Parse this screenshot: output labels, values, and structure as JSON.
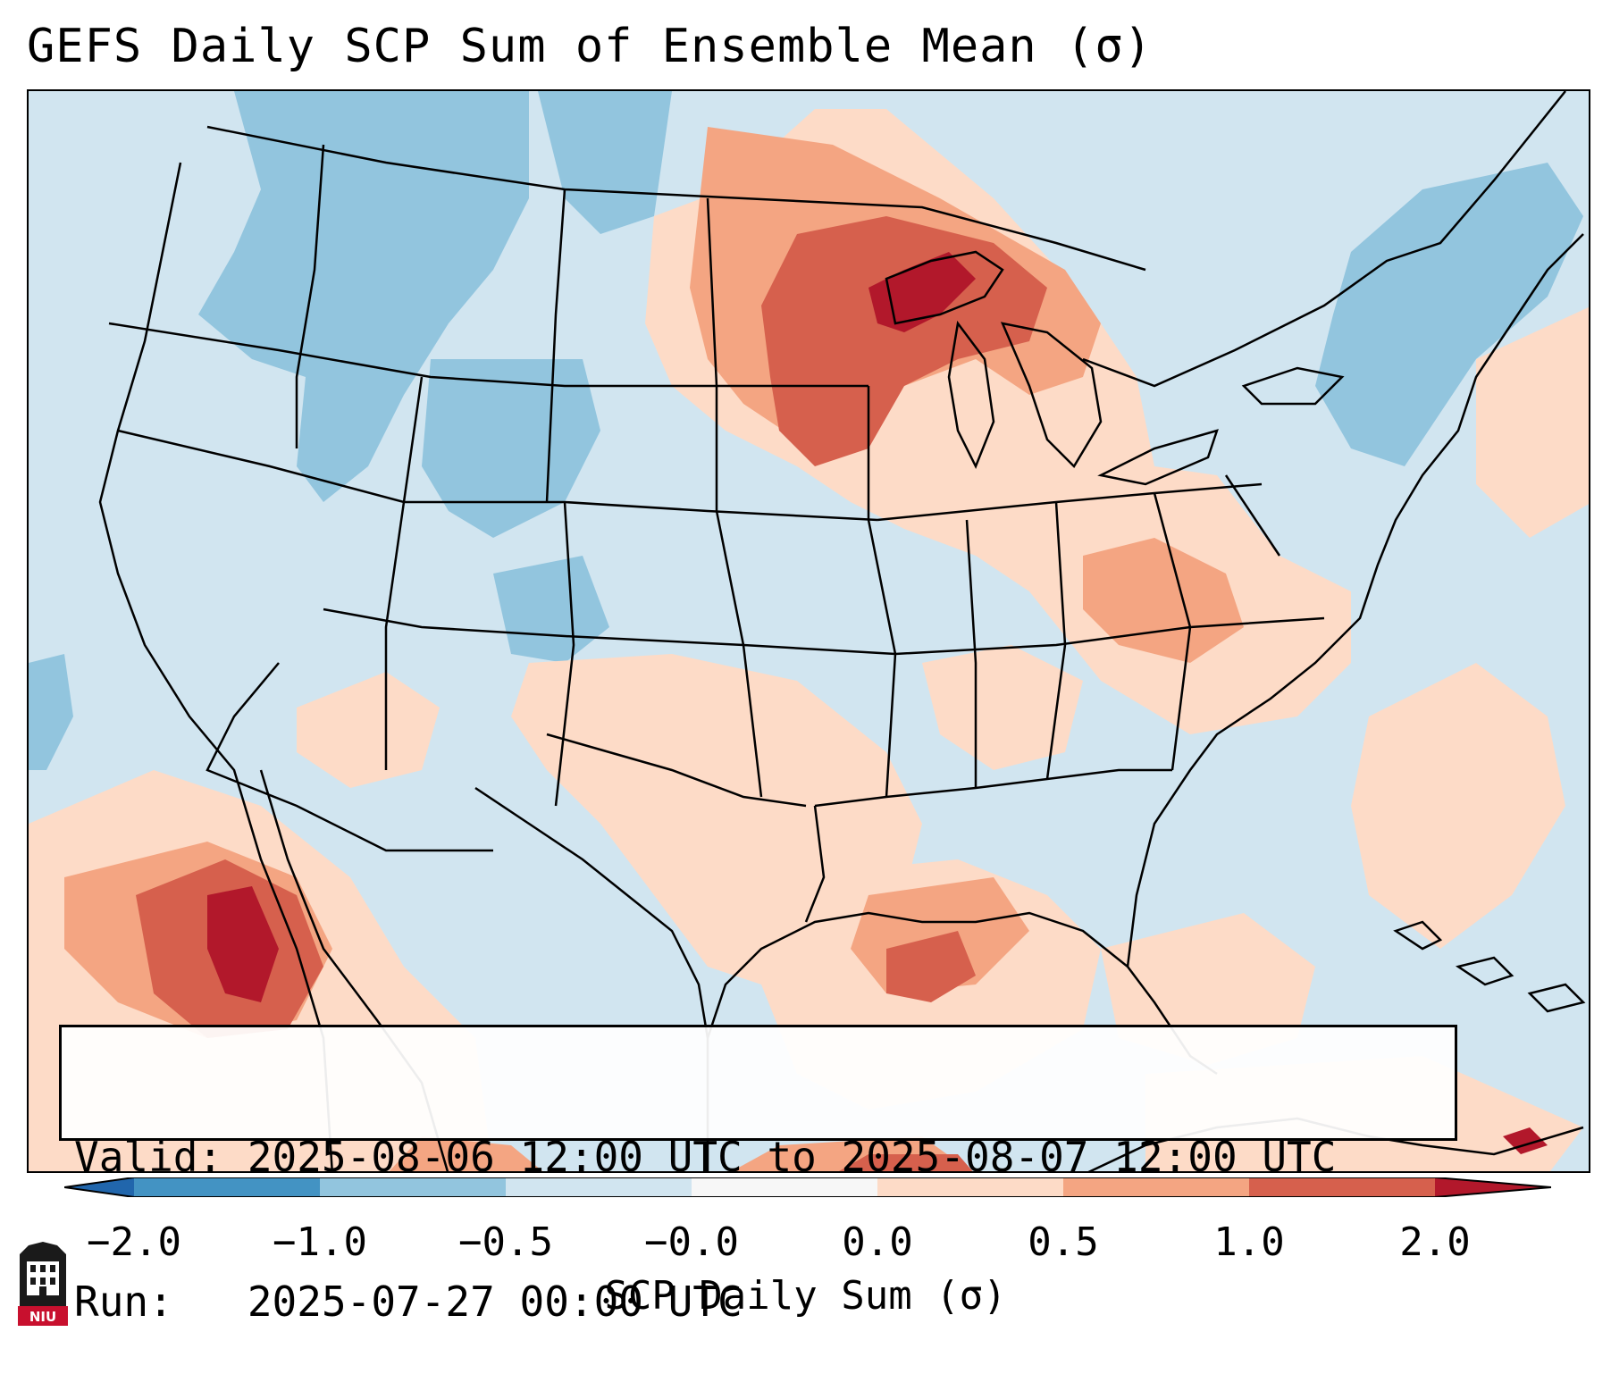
{
  "title": "GEFS Daily SCP Sum of Ensemble Mean (σ)",
  "info": {
    "valid_line": "Valid: 2025-08-06 12:00 UTC to 2025-08-07 12:00 UTC",
    "run_line": "Run:   2025-07-27 00:00 UTC"
  },
  "colorbar": {
    "label": "SCP Daily Sum (σ)",
    "ticks": [
      "−2.0",
      "−1.0",
      "−0.5",
      "−0.0",
      "0.0",
      "0.5",
      "1.0",
      "2.0"
    ],
    "colors": {
      "extend_low": "#2166ac",
      "bin_1": "#4393c3",
      "bin_2": "#92c5de",
      "bin_3": "#d1e5f0",
      "bin_4": "#f7f7f7",
      "bin_5": "#fddbc7",
      "bin_6": "#f4a582",
      "bin_7": "#d6604d",
      "extend_high": "#b2182b"
    }
  },
  "map": {
    "projection": "Lambert Conformal (CONUS)",
    "background_color": "#d1e5f0"
  },
  "logo": {
    "text": "NIU",
    "color": "#c8102e"
  }
}
